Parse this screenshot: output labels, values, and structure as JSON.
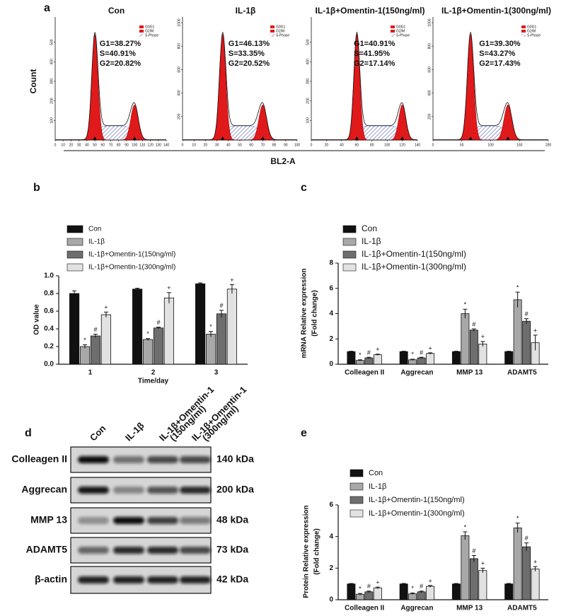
{
  "flow_cytometry": {
    "panel_label": "a",
    "y_label": "Count",
    "x_label": "BL2-A",
    "legend": [
      "G0G1",
      "G2/M",
      "S-Phase"
    ],
    "plots": [
      {
        "title": "Con",
        "stats": [
          "G1=38.27%",
          "S=40.91%",
          "G2=20.82%"
        ],
        "xlim": [
          0,
          140
        ],
        "xticks": [
          0,
          10,
          20,
          30,
          40,
          50,
          60,
          70,
          80,
          90,
          100,
          110,
          120,
          130,
          140
        ],
        "ylim": [
          0,
          600
        ],
        "yticks": [
          100,
          200,
          300,
          400,
          500
        ],
        "peaks": [
          50,
          100
        ]
      },
      {
        "title": "IL-1β",
        "stats": [
          "G1=46.13%",
          "S=33.35%",
          "G2=20.52%"
        ],
        "xlim": [
          0,
          100
        ],
        "xticks": [
          0,
          10,
          20,
          30,
          40,
          50,
          60,
          70,
          80,
          90,
          100
        ],
        "ylim": [
          0,
          1000
        ],
        "yticks": [
          200,
          400,
          600,
          800,
          1000
        ],
        "peaks": [
          35,
          70
        ]
      },
      {
        "title": "IL-1β+Omentin-1(150ng/ml)",
        "stats": [
          "G1=40.91%",
          "S=41.95%",
          "G2=17.14%"
        ],
        "xlim": [
          0,
          140
        ],
        "xticks": [
          0,
          20,
          40,
          60,
          80,
          100,
          120,
          140
        ],
        "ylim": [
          0,
          600
        ],
        "yticks": [
          100,
          200,
          300,
          400,
          500
        ],
        "peaks": [
          60,
          120
        ]
      },
      {
        "title": "IL-1β+Omentin-1(300ng/ml)",
        "stats": [
          "G1=39.30%",
          "S=43.27%",
          "G2=17.43%"
        ],
        "xlim": [
          0,
          200
        ],
        "xticks": [
          0,
          50,
          100,
          150,
          200
        ],
        "ylim": [
          0,
          1000
        ],
        "yticks": [
          200,
          400,
          600,
          800,
          1000
        ],
        "peaks": [
          65,
          130
        ]
      }
    ]
  },
  "western_blot": {
    "panel_label": "d",
    "lanes": [
      [
        "Con"
      ],
      [
        "IL-1β"
      ],
      [
        "IL-1β+Omentin-1",
        "(150ng/ml)"
      ],
      [
        "IL-1β+Omentin-1",
        "(300ng/ml)"
      ]
    ],
    "rows": [
      {
        "protein": "Colleagen II",
        "size": "140 kDa"
      },
      {
        "protein": "Aggrecan",
        "size": "200 kDa"
      },
      {
        "protein": "MMP 13",
        "size": "48 kDa"
      },
      {
        "protein": "ADAMT5",
        "size": "73 kDa"
      },
      {
        "protein": "β-actin",
        "size": "42 kDa"
      }
    ]
  },
  "chart_data": [
    {
      "type": "bar",
      "panel_label": "b",
      "x_label": "Time/day",
      "y_label": [
        "OD value"
      ],
      "categories": [
        "1",
        "2",
        "3"
      ],
      "ylim": [
        0,
        1
      ],
      "yticks": [
        {
          "value": 0,
          "label": "0.0"
        },
        0.2,
        0.4,
        0.6,
        0.8,
        {
          "value": 1,
          "label": "1.0"
        }
      ],
      "series": [
        {
          "name": "Con",
          "color": "#111111",
          "values": [
            0.8,
            0.85,
            0.91
          ],
          "errors": [
            0.03,
            0.01,
            0.01
          ]
        },
        {
          "name": "IL-1β",
          "color": "#a8a8a8",
          "values": [
            0.2,
            0.28,
            0.34
          ],
          "errors": [
            0.02,
            0.01,
            0.03
          ],
          "annotation": "*"
        },
        {
          "name": "IL-1β+Omentin-1(150ng/ml)",
          "color": "#6e6e6e",
          "values": [
            0.32,
            0.41,
            0.57
          ],
          "errors": [
            0.02,
            0.01,
            0.04
          ],
          "annotation": "#"
        },
        {
          "name": "IL-1β+Omentin-1(300ng/ml)",
          "color": "#e2e2e2",
          "values": [
            0.56,
            0.75,
            0.85
          ],
          "errors": [
            0.03,
            0.06,
            0.05
          ],
          "annotation": "+"
        }
      ]
    },
    {
      "type": "bar",
      "panel_label": "c",
      "y_label": [
        "mRNA Relative expression",
        "(Fold change)"
      ],
      "categories": [
        "Colleagen II",
        "Aggrecan",
        "MMP 13",
        "ADAMT5"
      ],
      "ylim": [
        0,
        8
      ],
      "yticks": [
        0,
        2,
        4,
        6,
        8
      ],
      "series": [
        {
          "name": "Con",
          "color": "#111111",
          "values": [
            1,
            1,
            1,
            1
          ],
          "errors": [
            0.03,
            0.03,
            0.03,
            0.03
          ]
        },
        {
          "name": "IL-1β",
          "color": "#a8a8a8",
          "values": [
            0.3,
            0.35,
            4.0,
            5.1
          ],
          "errors": [
            0.05,
            0.05,
            0.35,
            0.6
          ],
          "annotation": "*"
        },
        {
          "name": "IL-1β+Omentin-1(150ng/ml)",
          "color": "#6e6e6e",
          "values": [
            0.5,
            0.5,
            2.7,
            3.4
          ],
          "errors": [
            0.05,
            0.05,
            0.1,
            0.2
          ],
          "annotation": "#"
        },
        {
          "name": "IL-1β+Omentin-1(300ng/ml)",
          "color": "#e2e2e2",
          "values": [
            0.75,
            0.85,
            1.6,
            1.7
          ],
          "errors": [
            0.05,
            0.05,
            0.2,
            0.6
          ],
          "annotation": "+"
        }
      ]
    },
    {
      "type": "bar",
      "panel_label": "e",
      "y_label": [
        "Protein Relative expression",
        "(Fold change)"
      ],
      "categories": [
        "Colleagen II",
        "Aggrecan",
        "MMP 13",
        "ADAMT5"
      ],
      "ylim": [
        0,
        6
      ],
      "yticks": [
        0,
        2,
        4,
        6
      ],
      "series": [
        {
          "name": "Con",
          "color": "#111111",
          "values": [
            1,
            1,
            1,
            1
          ],
          "errors": [
            0.03,
            0.03,
            0.03,
            0.03
          ]
        },
        {
          "name": "IL-1β",
          "color": "#a8a8a8",
          "values": [
            0.35,
            0.38,
            4.05,
            4.55
          ],
          "errors": [
            0.05,
            0.05,
            0.25,
            0.3
          ],
          "annotation": "*"
        },
        {
          "name": "IL-1β+Omentin-1(150ng/ml)",
          "color": "#6e6e6e",
          "values": [
            0.5,
            0.5,
            2.6,
            3.35
          ],
          "errors": [
            0.05,
            0.05,
            0.2,
            0.25
          ],
          "annotation": "#"
        },
        {
          "name": "IL-1β+Omentin-1(300ng/ml)",
          "color": "#e2e2e2",
          "values": [
            0.75,
            0.85,
            1.85,
            1.95
          ],
          "errors": [
            0.05,
            0.05,
            0.15,
            0.15
          ],
          "annotation": "+"
        }
      ]
    }
  ]
}
